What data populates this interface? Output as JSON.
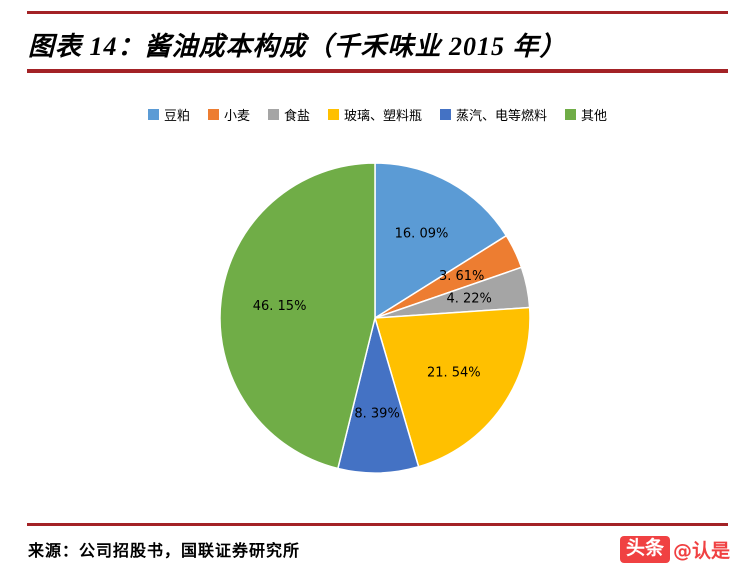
{
  "header": {
    "title": "图表 14：酱油成本构成（千禾味业 2015 年）"
  },
  "colors": {
    "rule": "#a32226",
    "watermark": "#f04142",
    "label_text": "#000000"
  },
  "chart_data": {
    "type": "pie",
    "title": "酱油成本构成（千禾味业 2015 年）",
    "legend_position": "top",
    "start_angle_deg": 0,
    "direction": "clockwise",
    "series": [
      {
        "label": "豆粕",
        "value": 16.09,
        "display": "16. 09%",
        "color": "#5B9BD5"
      },
      {
        "label": "小麦",
        "value": 3.61,
        "display": "3. 61%",
        "color": "#ED7D31"
      },
      {
        "label": "食盐",
        "value": 4.22,
        "display": "4. 22%",
        "color": "#A5A5A5"
      },
      {
        "label": "玻璃、塑料瓶",
        "value": 21.54,
        "display": "21. 54%",
        "color": "#FFC000"
      },
      {
        "label": "蒸汽、电等燃料",
        "value": 8.39,
        "display": "8. 39%",
        "color": "#4472C4"
      },
      {
        "label": "其他",
        "value": 46.15,
        "display": "46. 15%",
        "color": "#70AD47"
      }
    ]
  },
  "footer": {
    "source": "来源：公司招股书，国联证券研究所",
    "watermark_badge": "头条",
    "watermark_handle": "@认是"
  }
}
